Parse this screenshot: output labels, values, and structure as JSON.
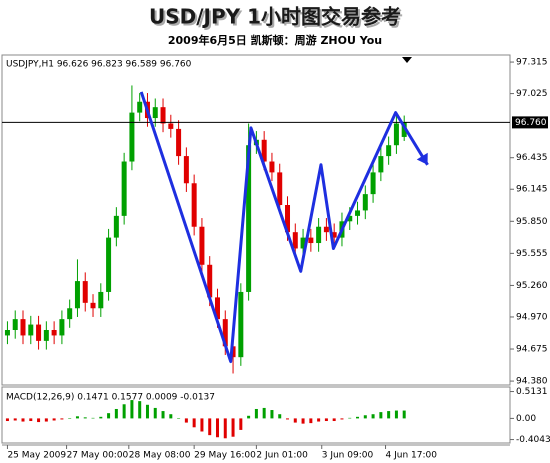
{
  "chart_data": {
    "type": "candlestick",
    "title": "USD/JPY  1小时图交易参考",
    "subtitle": "2009年6月5日   凯斯顿：周游 ZHOU You",
    "info_label": "USDJPY,H1  96.626 96.823 96.589 96.760",
    "up_color": "#00a000",
    "down_color": "#e00000",
    "ylim": [
      94.344,
      97.38
    ],
    "yticks": [
      97.315,
      97.025,
      96.435,
      96.145,
      {
        "value": 95.85,
        "label": "95.850"
      },
      95.555,
      {
        "value": 95.26,
        "label": "95.260"
      },
      {
        "value": 94.97,
        "label": "94.970"
      },
      94.675,
      {
        "value": 94.38,
        "label": "94.380"
      }
    ],
    "current_price": {
      "value": 96.76,
      "label": "96.760"
    },
    "xlim": [
      -0.7,
      64.6
    ],
    "xticks": [
      {
        "value": 0,
        "label": "25 May 2009"
      },
      {
        "value": 7.6,
        "label": "27 May 00:00"
      },
      {
        "value": 15.6,
        "label": "28 May 08:00"
      },
      {
        "value": 24,
        "label": "29 May 16:00"
      },
      {
        "value": 32,
        "label": "2 Jun 01:00"
      },
      {
        "value": 40.4,
        "label": "3 Jun 09:00"
      },
      {
        "value": 48.6,
        "label": "4 Jun 17:00"
      }
    ],
    "open": [
      94.8,
      94.85,
      94.95,
      94.8,
      94.9,
      94.75,
      94.85,
      94.8,
      94.95,
      95.05,
      95.3,
      95.1,
      95.05,
      95.2,
      95.7,
      95.9,
      96.4,
      96.85,
      96.95,
      96.8,
      96.9,
      96.75,
      96.7,
      96.45,
      96.2,
      95.8,
      95.45,
      95.15,
      94.95,
      94.7,
      94.6,
      95.2,
      96.55,
      96.6,
      96.4,
      96.3,
      96.0,
      95.75,
      95.6,
      95.7,
      95.65,
      95.8,
      95.75,
      95.7,
      95.85,
      95.9,
      95.95,
      96.1,
      96.3,
      96.45,
      96.55,
      96.626
    ],
    "high": [
      94.93,
      95.03,
      95.03,
      94.98,
      94.98,
      94.93,
      94.93,
      95.03,
      95.13,
      95.5,
      95.38,
      95.18,
      95.28,
      95.78,
      95.98,
      96.48,
      97.1,
      97.03,
      97.03,
      96.98,
      96.98,
      96.83,
      96.78,
      96.53,
      96.28,
      95.88,
      95.53,
      95.23,
      95.03,
      94.78,
      95.28,
      96.75,
      96.68,
      96.68,
      96.48,
      96.38,
      96.08,
      95.83,
      95.78,
      95.78,
      95.88,
      95.88,
      95.83,
      95.93,
      95.98,
      96.03,
      96.18,
      96.38,
      96.53,
      96.63,
      96.83,
      96.823
    ],
    "low": [
      94.72,
      94.77,
      94.72,
      94.72,
      94.67,
      94.67,
      94.72,
      94.72,
      94.87,
      94.97,
      95.02,
      94.97,
      94.97,
      95.12,
      95.62,
      95.82,
      96.32,
      96.77,
      96.72,
      96.72,
      96.67,
      96.62,
      96.37,
      96.12,
      95.72,
      95.37,
      95.07,
      94.87,
      94.62,
      94.45,
      94.52,
      95.12,
      96.47,
      96.32,
      96.22,
      95.92,
      95.67,
      95.52,
      95.52,
      95.57,
      95.57,
      95.67,
      95.62,
      95.62,
      95.77,
      95.82,
      95.87,
      96.02,
      96.22,
      96.37,
      96.47,
      96.589
    ],
    "close": [
      94.85,
      94.95,
      94.8,
      94.9,
      94.75,
      94.85,
      94.8,
      94.95,
      95.05,
      95.3,
      95.1,
      95.05,
      95.2,
      95.7,
      95.9,
      96.4,
      96.85,
      96.95,
      96.8,
      96.9,
      96.75,
      96.7,
      96.45,
      96.2,
      95.8,
      95.45,
      95.15,
      94.95,
      94.7,
      94.6,
      95.2,
      96.55,
      96.6,
      96.4,
      96.3,
      96.0,
      95.75,
      95.6,
      95.7,
      95.65,
      95.8,
      95.75,
      95.7,
      95.85,
      95.9,
      95.95,
      96.1,
      96.3,
      96.45,
      96.55,
      96.75,
      96.76
    ],
    "annotation": {
      "color": "#1e2fe0",
      "x": [
        17.2,
        28.7,
        31.3,
        37.7,
        40.3,
        41.9,
        49.9,
        54
      ],
      "values": [
        97.04,
        94.56,
        96.71,
        95.39,
        96.37,
        95.6,
        96.85,
        96.37
      ]
    },
    "macd": {
      "label": "MACD(12,26,9) 0.1471 0.1577 0.0009 -0.0137",
      "color": "#008000",
      "ylim": [
        -0.47,
        0.6
      ],
      "yticks": [
        0.5131,
        {
          "value": 0,
          "label": "0.00"
        },
        -0.4043
      ],
      "values": [
        -0.05,
        -0.04,
        -0.06,
        -0.05,
        -0.07,
        -0.06,
        -0.04,
        -0.02,
        0.0,
        0.04,
        0.02,
        0.01,
        0.03,
        0.1,
        0.18,
        0.27,
        0.35,
        0.33,
        0.26,
        0.2,
        0.14,
        0.08,
        0.0,
        -0.08,
        -0.17,
        -0.25,
        -0.32,
        -0.36,
        -0.38,
        -0.35,
        -0.22,
        0.05,
        0.18,
        0.2,
        0.16,
        0.08,
        -0.02,
        -0.08,
        -0.1,
        -0.09,
        -0.06,
        -0.05,
        -0.05,
        -0.02,
        0.01,
        0.03,
        0.06,
        0.08,
        0.12,
        0.14,
        0.15,
        0.15
      ]
    }
  }
}
